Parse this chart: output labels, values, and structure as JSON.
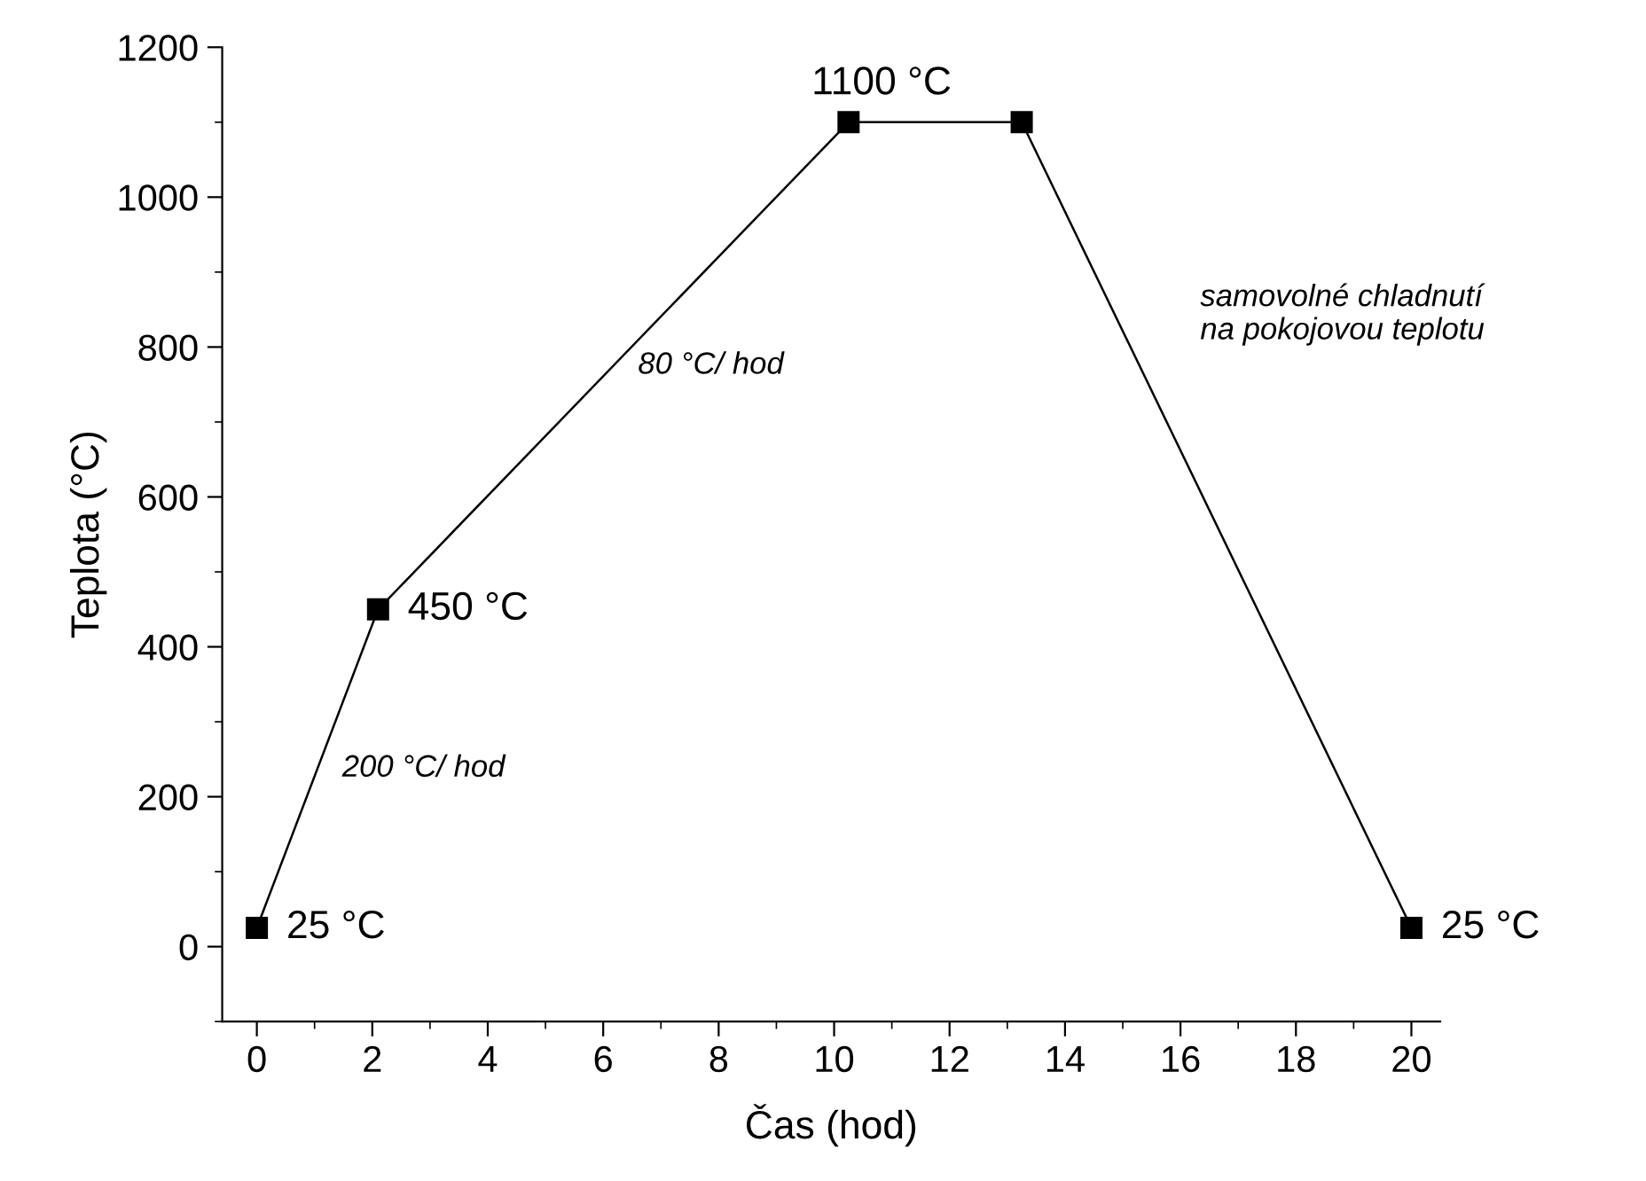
{
  "chart_data": {
    "type": "line",
    "xlabel": "Čas (hod)",
    "ylabel": "Teplota (°C)",
    "x": [
      0,
      2.1,
      10.25,
      13.25,
      20
    ],
    "series": [
      {
        "color": "#000000",
        "values": [
          25,
          450,
          1100,
          1100,
          25
        ]
      }
    ],
    "marker": "square",
    "line_style": "solid",
    "grid": false,
    "legend": false,
    "xlim": [
      -0.6,
      20.5
    ],
    "ylim": [
      -100,
      1200
    ],
    "xticks": [
      0,
      2,
      4,
      6,
      8,
      10,
      12,
      14,
      16,
      18,
      20
    ],
    "yticks": [
      0,
      200,
      400,
      600,
      800,
      1000,
      1200
    ],
    "annotations": [
      {
        "text": "25 °C",
        "x": 0,
        "y": 25
      },
      {
        "text": "450 °C",
        "x": 2.1,
        "y": 450
      },
      {
        "text": "1100 °C",
        "x": 10.25,
        "y": 1100
      },
      {
        "text": "25 °C",
        "x": 20,
        "y": 25
      },
      "200 °C/ hod",
      "80 °C/ hod",
      "samovolné chladnutí\nna pokojovou teplotu"
    ]
  }
}
